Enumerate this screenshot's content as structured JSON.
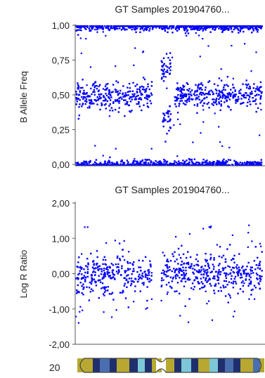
{
  "chart_data": [
    {
      "type": "scatter",
      "title": "GT Samples 201904760...",
      "xlabel": "",
      "ylabel": "B Allele Freq",
      "ylim": [
        0,
        1
      ],
      "yticks": [
        "1,00",
        "0,75",
        "0,50",
        "0,25",
        "0,00"
      ],
      "ytick_values": [
        1.0,
        0.75,
        0.5,
        0.25,
        0.0
      ],
      "grid": false,
      "point_color": "#0000ff",
      "series": [
        {
          "bands": [
            {
              "x": [
                0.0,
                0.98
              ],
              "center": 1.0,
              "spread": 0.018
            },
            {
              "x": [
                0.0,
                0.98
              ],
              "center": 0.0,
              "spread": 0.018
            },
            {
              "x": [
                0.0,
                0.4
              ],
              "center": 0.5,
              "spread": 0.05
            },
            {
              "x": [
                0.52,
                0.98
              ],
              "center": 0.5,
              "spread": 0.05
            },
            {
              "x": [
                0.45,
                0.5
              ],
              "center": 0.68,
              "spread": 0.05
            },
            {
              "x": [
                0.45,
                0.5
              ],
              "center": 0.32,
              "spread": 0.05
            }
          ],
          "gap": [
            0.41,
            0.445
          ]
        }
      ]
    },
    {
      "type": "scatter",
      "title": "GT Samples 201904760...",
      "xlabel": "",
      "ylabel": "Log R Ratio",
      "ylim": [
        -2,
        2
      ],
      "yticks": [
        "2,00",
        "1,00",
        "0,00",
        "-1,00",
        "-2,00"
      ],
      "ytick_values": [
        2.0,
        1.0,
        0.0,
        -1.0,
        -2.0
      ],
      "grid": false,
      "point_color": "#0000ff",
      "series": [
        {
          "bands": [
            {
              "x": [
                0.0,
                0.4
              ],
              "center": 0.0,
              "spread": 0.28
            },
            {
              "x": [
                0.45,
                0.98
              ],
              "center": 0.05,
              "spread": 0.28
            }
          ],
          "gap": [
            0.41,
            0.445
          ]
        }
      ]
    }
  ],
  "ideogram": {
    "chromosome_label": "20",
    "colors": {
      "gold": "#b8a830",
      "navy": "#1f2f6e",
      "cyan": "#7cc8d8",
      "blue": "#4a6fb0",
      "outline": "#444444"
    }
  }
}
